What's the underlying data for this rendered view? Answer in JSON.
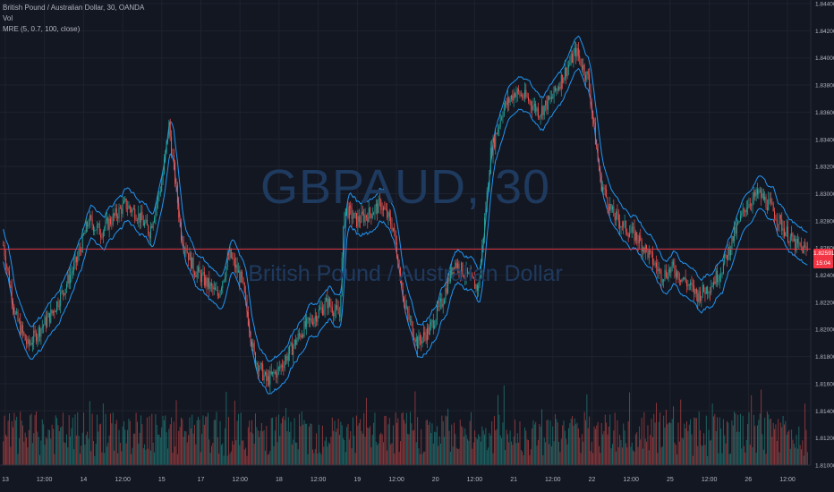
{
  "legend": {
    "symbol_line": "British Pound / Australian Dollar, 30, OANDA",
    "vol_label": "Vol",
    "indicator_line": "MRE (5, 0.7, 100, close)"
  },
  "watermark": {
    "ticker": "GBPAUD, 30",
    "description": "British Pound / Australian Dollar"
  },
  "current_price": {
    "value": "1.82591",
    "countdown": "15:04"
  },
  "colors": {
    "background": "#131722",
    "up": "#26a69a",
    "down": "#ef5350",
    "band": "#2196f3",
    "price_line": "#f23645",
    "grid": "#1e222d",
    "text": "#b2b5be"
  },
  "chart_data": {
    "type": "candlestick",
    "y_axis": {
      "min": 1.81,
      "max": 1.844,
      "ticks": [
        "1.84400",
        "1.84200",
        "1.84000",
        "1.83800",
        "1.83600",
        "1.83400",
        "1.83200",
        "1.83000",
        "1.82800",
        "1.82600",
        "1.82400",
        "1.82200",
        "1.82000",
        "1.81800",
        "1.81600",
        "1.81400",
        "1.81200",
        "1.81000"
      ]
    },
    "x_axis": {
      "labels": [
        "13",
        "12:00",
        "14",
        "12:00",
        "15",
        "17",
        "12:00",
        "18",
        "12:00",
        "19",
        "12:00",
        "20",
        "12:00",
        "21",
        "12:00",
        "22",
        "12:00",
        "25",
        "12:00",
        "26",
        "12:00"
      ]
    },
    "price_path_keypoints": [
      [
        0,
        1.8262
      ],
      [
        10,
        1.821
      ],
      [
        20,
        1.8188
      ],
      [
        30,
        1.82
      ],
      [
        40,
        1.8212
      ],
      [
        50,
        1.823
      ],
      [
        60,
        1.825
      ],
      [
        70,
        1.828
      ],
      [
        80,
        1.8272
      ],
      [
        90,
        1.8282
      ],
      [
        100,
        1.8292
      ],
      [
        110,
        1.8285
      ],
      [
        120,
        1.8272
      ],
      [
        130,
        1.8308
      ],
      [
        136,
        1.835
      ],
      [
        146,
        1.827
      ],
      [
        156,
        1.8245
      ],
      [
        166,
        1.8235
      ],
      [
        176,
        1.8225
      ],
      [
        186,
        1.8255
      ],
      [
        196,
        1.8235
      ],
      [
        206,
        1.818
      ],
      [
        216,
        1.8162
      ],
      [
        226,
        1.817
      ],
      [
        236,
        1.8185
      ],
      [
        246,
        1.82
      ],
      [
        256,
        1.821
      ],
      [
        266,
        1.822
      ],
      [
        276,
        1.821
      ],
      [
        280,
        1.829
      ],
      [
        290,
        1.828
      ],
      [
        300,
        1.8285
      ],
      [
        310,
        1.8292
      ],
      [
        320,
        1.8275
      ],
      [
        330,
        1.8215
      ],
      [
        340,
        1.819
      ],
      [
        350,
        1.82
      ],
      [
        360,
        1.822
      ],
      [
        370,
        1.825
      ],
      [
        380,
        1.824
      ],
      [
        390,
        1.823
      ],
      [
        400,
        1.833
      ],
      [
        410,
        1.8362
      ],
      [
        420,
        1.8375
      ],
      [
        430,
        1.837
      ],
      [
        440,
        1.836
      ],
      [
        450,
        1.837
      ],
      [
        460,
        1.8388
      ],
      [
        470,
        1.8405
      ],
      [
        480,
        1.8385
      ],
      [
        490,
        1.831
      ],
      [
        500,
        1.8285
      ],
      [
        510,
        1.8275
      ],
      [
        520,
        1.8268
      ],
      [
        530,
        1.8255
      ],
      [
        540,
        1.824
      ],
      [
        550,
        1.8245
      ],
      [
        560,
        1.8235
      ],
      [
        570,
        1.8225
      ],
      [
        580,
        1.8232
      ],
      [
        590,
        1.8245
      ],
      [
        600,
        1.827
      ],
      [
        610,
        1.8292
      ],
      [
        620,
        1.83
      ],
      [
        630,
        1.829
      ],
      [
        640,
        1.8275
      ],
      [
        650,
        1.8262
      ],
      [
        660,
        1.8258
      ]
    ]
  }
}
